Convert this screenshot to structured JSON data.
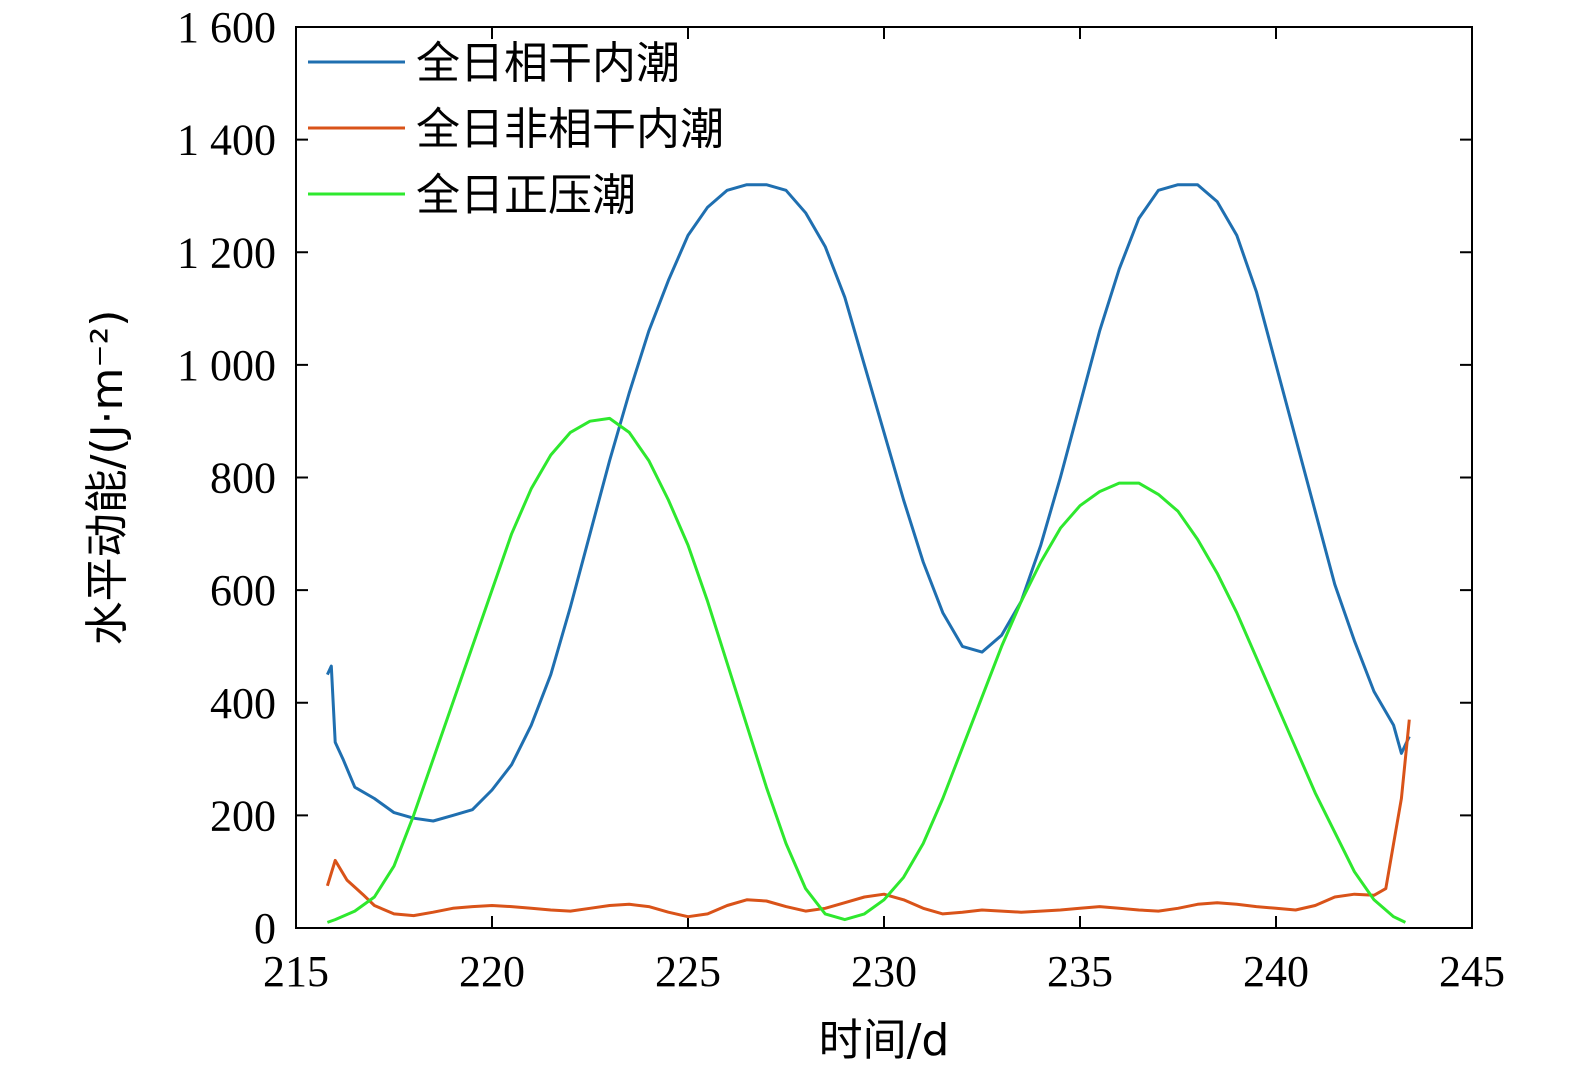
{
  "chart_data": {
    "type": "line",
    "xlabel": "时间/d",
    "ylabel": "水平动能/(J·m⁻²)",
    "xlim": [
      215,
      245
    ],
    "ylim": [
      0,
      1600
    ],
    "xticks": [
      215,
      220,
      225,
      230,
      235,
      240,
      245
    ],
    "yticks": [
      0,
      200,
      400,
      600,
      800,
      1000,
      1200,
      1400,
      1600
    ],
    "xtick_labels": [
      "215",
      "220",
      "225",
      "230",
      "235",
      "240",
      "245"
    ],
    "ytick_labels": [
      "0",
      "200",
      "400",
      "600",
      "800",
      "1 000",
      "1 200",
      "1 400",
      "1 600"
    ],
    "grid": false,
    "legend_position": "top-left",
    "series": [
      {
        "name": "全日相干内潮",
        "color": "#1f6fb0",
        "x": [
          215.8,
          215.9,
          216.0,
          216.2,
          216.5,
          217.0,
          217.5,
          218.0,
          218.5,
          219.0,
          219.5,
          220.0,
          220.5,
          221.0,
          221.5,
          222.0,
          222.5,
          223.0,
          223.5,
          224.0,
          224.5,
          225.0,
          225.5,
          226.0,
          226.5,
          227.0,
          227.5,
          228.0,
          228.5,
          229.0,
          229.5,
          230.0,
          230.5,
          231.0,
          231.5,
          232.0,
          232.5,
          233.0,
          233.5,
          234.0,
          234.5,
          235.0,
          235.5,
          236.0,
          236.5,
          237.0,
          237.5,
          238.0,
          238.5,
          239.0,
          239.5,
          240.0,
          240.5,
          241.0,
          241.5,
          242.0,
          242.5,
          243.0,
          243.2,
          243.4
        ],
        "y": [
          450,
          465,
          330,
          300,
          250,
          230,
          205,
          195,
          190,
          200,
          210,
          245,
          290,
          360,
          450,
          570,
          700,
          830,
          950,
          1060,
          1150,
          1230,
          1280,
          1310,
          1320,
          1320,
          1310,
          1270,
          1210,
          1120,
          1000,
          880,
          760,
          650,
          560,
          500,
          490,
          520,
          580,
          680,
          800,
          930,
          1060,
          1170,
          1260,
          1310,
          1320,
          1320,
          1290,
          1230,
          1130,
          1000,
          870,
          740,
          610,
          510,
          420,
          360,
          310,
          340
        ],
        "values_note": ""
      },
      {
        "name": "全日非相干内潮",
        "color": "#d95319",
        "x": [
          215.8,
          216.0,
          216.3,
          216.7,
          217.0,
          217.5,
          218.0,
          218.5,
          219.0,
          219.5,
          220.0,
          220.5,
          221.0,
          221.5,
          222.0,
          222.5,
          223.0,
          223.5,
          224.0,
          224.5,
          225.0,
          225.5,
          226.0,
          226.5,
          227.0,
          227.5,
          228.0,
          228.5,
          229.0,
          229.5,
          230.0,
          230.5,
          231.0,
          231.5,
          232.0,
          232.5,
          233.0,
          233.5,
          234.0,
          234.5,
          235.0,
          235.5,
          236.0,
          236.5,
          237.0,
          237.5,
          238.0,
          238.5,
          239.0,
          239.5,
          240.0,
          240.5,
          241.0,
          241.5,
          242.0,
          242.5,
          242.8,
          243.0,
          243.2,
          243.4
        ],
        "y": [
          75,
          120,
          85,
          60,
          40,
          25,
          22,
          28,
          35,
          38,
          40,
          38,
          35,
          32,
          30,
          35,
          40,
          42,
          38,
          28,
          20,
          25,
          40,
          50,
          48,
          38,
          30,
          35,
          45,
          55,
          60,
          50,
          35,
          25,
          28,
          32,
          30,
          28,
          30,
          32,
          35,
          38,
          35,
          32,
          30,
          35,
          42,
          45,
          42,
          38,
          35,
          32,
          40,
          55,
          60,
          58,
          70,
          150,
          230,
          370
        ],
        "values_note": ""
      },
      {
        "name": "全日正压潮",
        "color": "#2ee82e",
        "x": [
          215.8,
          216.0,
          216.5,
          217.0,
          217.5,
          218.0,
          218.5,
          219.0,
          219.5,
          220.0,
          220.5,
          221.0,
          221.5,
          222.0,
          222.5,
          223.0,
          223.5,
          224.0,
          224.5,
          225.0,
          225.5,
          226.0,
          226.5,
          227.0,
          227.5,
          228.0,
          228.5,
          229.0,
          229.5,
          230.0,
          230.5,
          231.0,
          231.5,
          232.0,
          232.5,
          233.0,
          233.5,
          234.0,
          234.5,
          235.0,
          235.5,
          236.0,
          236.5,
          237.0,
          237.5,
          238.0,
          238.5,
          239.0,
          239.5,
          240.0,
          240.5,
          241.0,
          241.5,
          242.0,
          242.5,
          243.0,
          243.3
        ],
        "y": [
          10,
          15,
          30,
          55,
          110,
          200,
          300,
          400,
          500,
          600,
          700,
          780,
          840,
          880,
          900,
          905,
          880,
          830,
          760,
          680,
          580,
          470,
          360,
          250,
          150,
          70,
          25,
          15,
          25,
          50,
          90,
          150,
          230,
          320,
          410,
          500,
          580,
          650,
          710,
          750,
          775,
          790,
          790,
          770,
          740,
          690,
          630,
          560,
          480,
          400,
          320,
          240,
          170,
          100,
          50,
          20,
          10
        ],
        "values_note": ""
      }
    ]
  }
}
